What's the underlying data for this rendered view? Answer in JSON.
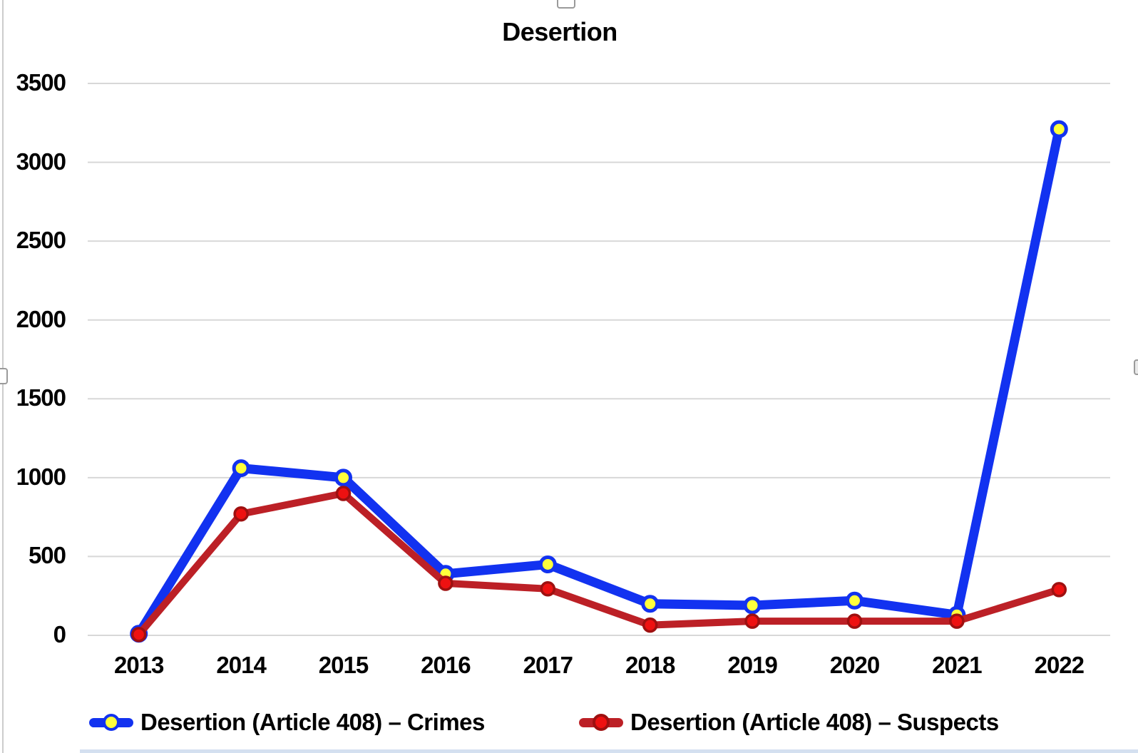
{
  "title": "Desertion",
  "chart_data": {
    "type": "line",
    "title": "Desertion",
    "categories": [
      "2013",
      "2014",
      "2015",
      "2016",
      "2017",
      "2018",
      "2019",
      "2020",
      "2021",
      "2022"
    ],
    "series": [
      {
        "name": "Desertion (Article 408) – Crimes",
        "values": [
          10,
          1060,
          1000,
          390,
          450,
          200,
          190,
          220,
          130,
          3210
        ],
        "line_color": "#1232f0",
        "marker_fill": "#ffff3c",
        "marker_stroke": "#1232f0"
      },
      {
        "name": "Desertion (Article 408) – Suspects",
        "values": [
          5,
          770,
          900,
          330,
          295,
          65,
          90,
          90,
          90,
          290
        ],
        "line_color": "#bc2026",
        "marker_fill": "#ee1111",
        "marker_stroke": "#9e1010"
      }
    ],
    "xlabel": "",
    "ylabel": "",
    "ylim": [
      0,
      3500
    ],
    "y_ticks": [
      0,
      500,
      1000,
      1500,
      2000,
      2500,
      3000,
      3500
    ],
    "grid": true,
    "grid_color": "#d8d8d8",
    "legend_position": "bottom"
  }
}
